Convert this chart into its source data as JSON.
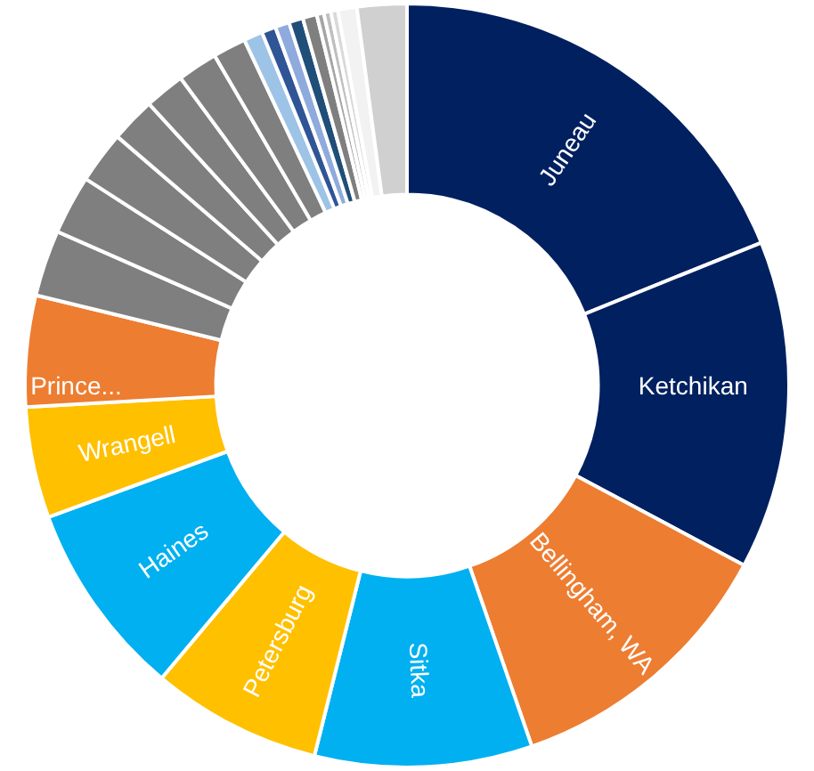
{
  "chart_data": {
    "type": "donut",
    "legend": false,
    "categories": [
      "Juneau",
      "Ketchikan",
      "Bellingham, WA",
      "Sitka",
      "Petersburg",
      "Haines",
      "Wrangell",
      "Prince...",
      null,
      null,
      null,
      null,
      null,
      null,
      null,
      null,
      null,
      null,
      null,
      null,
      null,
      null,
      null,
      null,
      null
    ],
    "values": [
      18.9,
      13.9,
      11.9,
      9.2,
      7.2,
      8.3,
      4.7,
      4.7,
      2.8,
      2.5,
      2.2,
      1.9,
      1.7,
      1.7,
      1.4,
      0.8,
      0.6,
      0.6,
      0.6,
      0.6,
      0.3,
      0.3,
      0.3,
      0.8,
      2.1
    ],
    "colors": [
      "#002060",
      "#002060",
      "#ed7d31",
      "#00b0f0",
      "#ffc000",
      "#00b0f0",
      "#ffc000",
      "#ed7d31",
      "#7f7f7f",
      "#7f7f7f",
      "#7f7f7f",
      "#7f7f7f",
      "#7f7f7f",
      "#7f7f7f",
      "#7f7f7f",
      "#9dc3e6",
      "#2f5597",
      "#8faadc",
      "#1f4e79",
      "#7f7f7f",
      "#a5a5a5",
      "#bfbfbf",
      "#d9d9d9",
      "#f2f2f2",
      "#d0d0d0"
    ]
  }
}
